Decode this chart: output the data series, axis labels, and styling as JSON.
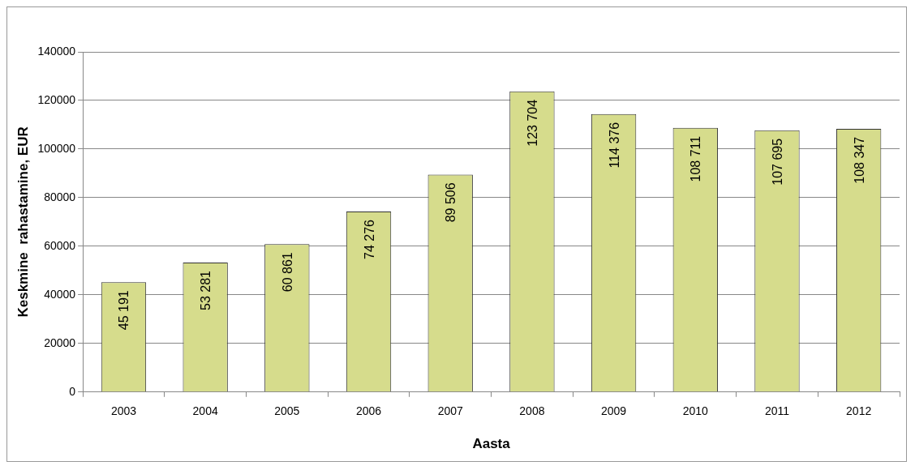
{
  "chart_data": {
    "type": "bar",
    "xlabel": "Aasta",
    "ylabel": "Keskmine  rahastamine, EUR",
    "categories": [
      "2003",
      "2004",
      "2005",
      "2006",
      "2007",
      "2008",
      "2009",
      "2010",
      "2011",
      "2012"
    ],
    "values": [
      45191,
      53281,
      60861,
      74276,
      89506,
      123704,
      114376,
      108711,
      107695,
      108347
    ],
    "value_labels": [
      "45 191",
      "53 281",
      "60 861",
      "74 276",
      "89 506",
      "123 704",
      "114 376",
      "108 711",
      "107 695",
      "108 347"
    ],
    "color": "#d6dc8c",
    "ylim": [
      0,
      140000
    ],
    "yticks": [
      0,
      20000,
      40000,
      60000,
      80000,
      100000,
      120000,
      140000
    ],
    "grid": "y",
    "legend": false
  }
}
